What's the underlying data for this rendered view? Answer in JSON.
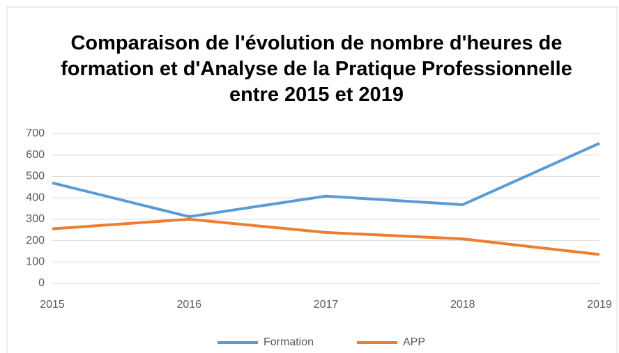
{
  "chart_data": {
    "type": "line",
    "title": "Comparaison de l'évolution de nombre d'heures de formation et d'Analyse de la Pratique Professionnelle entre 2015 et 2019",
    "x": [
      2015,
      2016,
      2017,
      2018,
      2019
    ],
    "xlim": [
      2015,
      2019
    ],
    "xticks": [
      2015,
      2016,
      2017,
      2018,
      2019
    ],
    "series": [
      {
        "name": "Formation",
        "color": "#5b9bd5",
        "values": [
          470,
          312,
          408,
          368,
          655
        ]
      },
      {
        "name": "APP",
        "color": "#ed7d31",
        "values": [
          255,
          300,
          238,
          208,
          135
        ]
      }
    ],
    "ylim": [
      0,
      700
    ],
    "yticks": [
      0,
      100,
      200,
      300,
      400,
      500,
      600,
      700
    ],
    "grid": true,
    "legend": "bottom"
  }
}
